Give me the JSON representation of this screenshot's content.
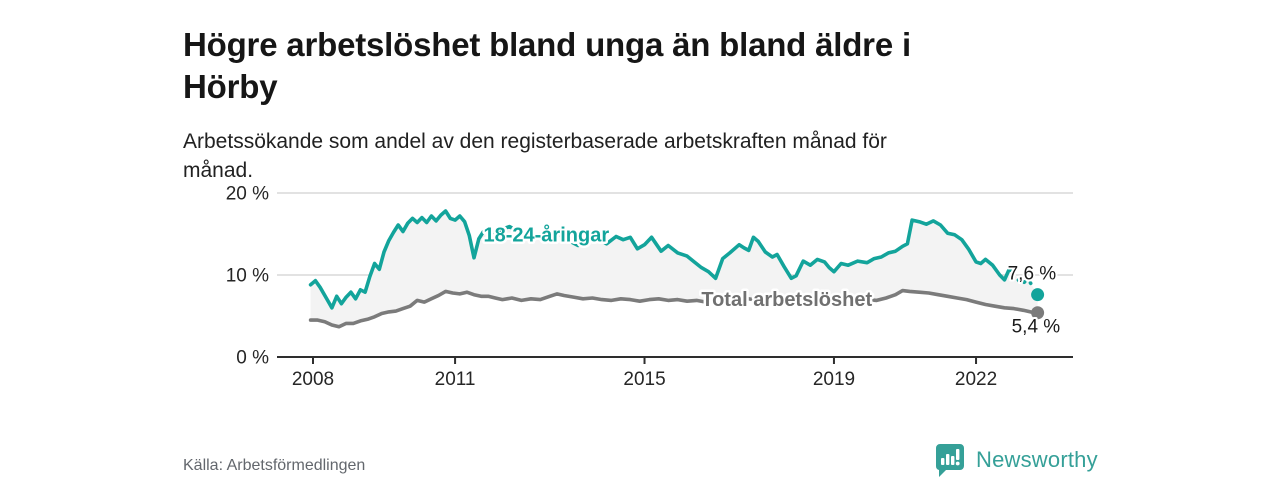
{
  "header": {
    "title_line1": "Högre arbetslöshet bland unga än bland äldre i",
    "title_line2": "Hörby",
    "subtitle_line1": "Arbetssökande som andel av den registerbaserade arbetskraften månad för",
    "subtitle_line2": "månad."
  },
  "footer": {
    "source": "Källa: Arbetsförmedlingen",
    "brand_name": "Newsworthy",
    "brand_icon": "bar-chart-speech-bubble-icon"
  },
  "colors": {
    "young": "#13a49b",
    "total": "#7b7b7b",
    "total_label": "#707070",
    "band_fill": "#f3f3f3",
    "grid": "#d8d8d8",
    "axis": "#2e2e2e",
    "tick_text": "#262626",
    "value_label": "#1a1a1a",
    "brand": "#35a098"
  },
  "chart_data": {
    "type": "line",
    "title": "Högre arbetslöshet bland unga än bland äldre i Hörby",
    "subtitle": "Arbetssökande som andel av den registerbaserade arbetskraften månad för månad.",
    "xlabel": "",
    "ylabel": "",
    "xlim": [
      2007.6,
      2023.8
    ],
    "ylim": [
      0,
      21
    ],
    "grid": "horizontal",
    "legend_position": "inline-labels",
    "x_ticks": [
      2008,
      2011,
      2015,
      2019,
      2022
    ],
    "y_ticks": [
      {
        "value": 0,
        "label": "0 %"
      },
      {
        "value": 10,
        "label": "10 %"
      },
      {
        "value": 20,
        "label": "20 %"
      }
    ],
    "band_between_series": true,
    "series": [
      {
        "name": "18-24-åringar",
        "color_key": "young",
        "end_label": "7,6 %",
        "end_value": 7.6,
        "dash_from": 2022.8,
        "label_pos": {
          "x": 2011.6,
          "y": 14.1
        },
        "points": [
          [
            2007.95,
            8.8
          ],
          [
            2008.05,
            9.3
          ],
          [
            2008.15,
            8.5
          ],
          [
            2008.3,
            7.0
          ],
          [
            2008.4,
            6.0
          ],
          [
            2008.5,
            7.4
          ],
          [
            2008.6,
            6.5
          ],
          [
            2008.7,
            7.3
          ],
          [
            2008.8,
            7.9
          ],
          [
            2008.9,
            7.1
          ],
          [
            2009.0,
            8.2
          ],
          [
            2009.1,
            7.9
          ],
          [
            2009.2,
            9.8
          ],
          [
            2009.3,
            11.4
          ],
          [
            2009.4,
            10.7
          ],
          [
            2009.5,
            12.8
          ],
          [
            2009.6,
            14.2
          ],
          [
            2009.7,
            15.2
          ],
          [
            2009.8,
            16.1
          ],
          [
            2009.9,
            15.3
          ],
          [
            2010.0,
            16.3
          ],
          [
            2010.1,
            16.9
          ],
          [
            2010.2,
            16.4
          ],
          [
            2010.3,
            17.0
          ],
          [
            2010.4,
            16.4
          ],
          [
            2010.5,
            17.2
          ],
          [
            2010.6,
            16.6
          ],
          [
            2010.7,
            17.3
          ],
          [
            2010.8,
            17.8
          ],
          [
            2010.9,
            16.9
          ],
          [
            2011.0,
            16.7
          ],
          [
            2011.1,
            17.2
          ],
          [
            2011.2,
            16.5
          ],
          [
            2011.3,
            14.8
          ],
          [
            2011.4,
            12.1
          ],
          [
            2011.5,
            14.4
          ],
          [
            2011.6,
            15.3
          ],
          [
            2011.7,
            15.7
          ],
          [
            2011.85,
            15.1
          ],
          [
            2012.0,
            15.6
          ],
          [
            2012.15,
            15.9
          ],
          [
            2012.3,
            15.4
          ],
          [
            2012.5,
            15.0
          ],
          [
            2012.7,
            14.6
          ],
          [
            2012.85,
            15.1
          ],
          [
            2013.0,
            14.5
          ],
          [
            2013.2,
            14.9
          ],
          [
            2013.4,
            14.2
          ],
          [
            2013.6,
            13.6
          ],
          [
            2013.8,
            14.1
          ],
          [
            2014.0,
            14.5
          ],
          [
            2014.2,
            13.8
          ],
          [
            2014.4,
            14.7
          ],
          [
            2014.55,
            14.3
          ],
          [
            2014.7,
            14.6
          ],
          [
            2014.85,
            13.2
          ],
          [
            2015.0,
            13.7
          ],
          [
            2015.15,
            14.6
          ],
          [
            2015.35,
            12.9
          ],
          [
            2015.5,
            13.6
          ],
          [
            2015.7,
            12.7
          ],
          [
            2015.9,
            12.3
          ],
          [
            2016.05,
            11.6
          ],
          [
            2016.2,
            10.9
          ],
          [
            2016.35,
            10.4
          ],
          [
            2016.5,
            9.6
          ],
          [
            2016.65,
            12.0
          ],
          [
            2016.8,
            12.7
          ],
          [
            2017.0,
            13.7
          ],
          [
            2017.1,
            13.3
          ],
          [
            2017.2,
            13.0
          ],
          [
            2017.3,
            14.6
          ],
          [
            2017.4,
            14.1
          ],
          [
            2017.55,
            12.8
          ],
          [
            2017.7,
            12.2
          ],
          [
            2017.8,
            12.5
          ],
          [
            2017.95,
            11.0
          ],
          [
            2018.1,
            9.6
          ],
          [
            2018.2,
            9.9
          ],
          [
            2018.35,
            11.7
          ],
          [
            2018.5,
            11.2
          ],
          [
            2018.65,
            11.9
          ],
          [
            2018.8,
            11.6
          ],
          [
            2018.9,
            10.9
          ],
          [
            2019.0,
            10.4
          ],
          [
            2019.15,
            11.4
          ],
          [
            2019.3,
            11.2
          ],
          [
            2019.5,
            11.7
          ],
          [
            2019.7,
            11.5
          ],
          [
            2019.85,
            12.0
          ],
          [
            2020.0,
            12.2
          ],
          [
            2020.15,
            12.7
          ],
          [
            2020.3,
            12.9
          ],
          [
            2020.45,
            13.5
          ],
          [
            2020.55,
            13.8
          ],
          [
            2020.65,
            16.7
          ],
          [
            2020.8,
            16.5
          ],
          [
            2020.95,
            16.2
          ],
          [
            2021.1,
            16.6
          ],
          [
            2021.25,
            16.1
          ],
          [
            2021.4,
            15.1
          ],
          [
            2021.55,
            14.9
          ],
          [
            2021.7,
            14.3
          ],
          [
            2021.85,
            13.1
          ],
          [
            2022.0,
            11.6
          ],
          [
            2022.1,
            11.4
          ],
          [
            2022.2,
            11.9
          ],
          [
            2022.35,
            11.2
          ],
          [
            2022.5,
            10.0
          ],
          [
            2022.6,
            9.4
          ],
          [
            2022.7,
            10.7
          ],
          [
            2022.8,
            10.4
          ],
          [
            2022.95,
            8.8
          ],
          [
            2023.1,
            9.5
          ],
          [
            2023.3,
            7.6
          ]
        ]
      },
      {
        "name": "Total arbetslöshet",
        "color_key": "total",
        "end_label": "5,4 %",
        "end_value": 5.4,
        "dash_from": null,
        "label_pos": {
          "x": 2016.2,
          "y": 6.2
        },
        "points": [
          [
            2007.95,
            4.5
          ],
          [
            2008.1,
            4.5
          ],
          [
            2008.25,
            4.3
          ],
          [
            2008.4,
            3.9
          ],
          [
            2008.55,
            3.7
          ],
          [
            2008.7,
            4.1
          ],
          [
            2008.85,
            4.1
          ],
          [
            2009.0,
            4.4
          ],
          [
            2009.15,
            4.6
          ],
          [
            2009.3,
            4.9
          ],
          [
            2009.45,
            5.3
          ],
          [
            2009.6,
            5.5
          ],
          [
            2009.75,
            5.6
          ],
          [
            2009.9,
            5.9
          ],
          [
            2010.05,
            6.2
          ],
          [
            2010.2,
            6.9
          ],
          [
            2010.35,
            6.7
          ],
          [
            2010.5,
            7.1
          ],
          [
            2010.65,
            7.5
          ],
          [
            2010.8,
            8.0
          ],
          [
            2010.95,
            7.8
          ],
          [
            2011.1,
            7.7
          ],
          [
            2011.25,
            7.9
          ],
          [
            2011.4,
            7.6
          ],
          [
            2011.55,
            7.4
          ],
          [
            2011.7,
            7.4
          ],
          [
            2011.85,
            7.2
          ],
          [
            2012.0,
            7.0
          ],
          [
            2012.2,
            7.2
          ],
          [
            2012.4,
            6.9
          ],
          [
            2012.6,
            7.1
          ],
          [
            2012.8,
            7.0
          ],
          [
            2013.0,
            7.4
          ],
          [
            2013.15,
            7.7
          ],
          [
            2013.3,
            7.5
          ],
          [
            2013.5,
            7.3
          ],
          [
            2013.7,
            7.1
          ],
          [
            2013.9,
            7.2
          ],
          [
            2014.1,
            7.0
          ],
          [
            2014.3,
            6.9
          ],
          [
            2014.5,
            7.1
          ],
          [
            2014.7,
            7.0
          ],
          [
            2014.9,
            6.8
          ],
          [
            2015.1,
            7.0
          ],
          [
            2015.3,
            7.1
          ],
          [
            2015.5,
            6.9
          ],
          [
            2015.7,
            7.0
          ],
          [
            2015.9,
            6.8
          ],
          [
            2016.1,
            6.9
          ],
          [
            2016.3,
            6.7
          ],
          [
            2016.5,
            6.8
          ],
          [
            2016.7,
            7.0
          ],
          [
            2016.9,
            7.1
          ],
          [
            2017.1,
            7.2
          ],
          [
            2017.3,
            7.0
          ],
          [
            2017.5,
            7.1
          ],
          [
            2017.7,
            6.9
          ],
          [
            2017.9,
            6.8
          ],
          [
            2018.1,
            6.7
          ],
          [
            2018.3,
            6.9
          ],
          [
            2018.5,
            6.8
          ],
          [
            2018.7,
            7.0
          ],
          [
            2018.9,
            6.9
          ],
          [
            2019.1,
            6.8
          ],
          [
            2019.3,
            7.0
          ],
          [
            2019.5,
            6.9
          ],
          [
            2019.7,
            7.0
          ],
          [
            2019.9,
            6.9
          ],
          [
            2020.1,
            7.2
          ],
          [
            2020.3,
            7.6
          ],
          [
            2020.45,
            8.1
          ],
          [
            2020.6,
            8.0
          ],
          [
            2020.8,
            7.9
          ],
          [
            2021.0,
            7.8
          ],
          [
            2021.2,
            7.6
          ],
          [
            2021.4,
            7.4
          ],
          [
            2021.6,
            7.2
          ],
          [
            2021.8,
            7.0
          ],
          [
            2022.0,
            6.7
          ],
          [
            2022.2,
            6.4
          ],
          [
            2022.4,
            6.2
          ],
          [
            2022.6,
            6.0
          ],
          [
            2022.8,
            5.9
          ],
          [
            2023.0,
            5.7
          ],
          [
            2023.15,
            5.5
          ],
          [
            2023.3,
            5.4
          ]
        ]
      }
    ]
  }
}
